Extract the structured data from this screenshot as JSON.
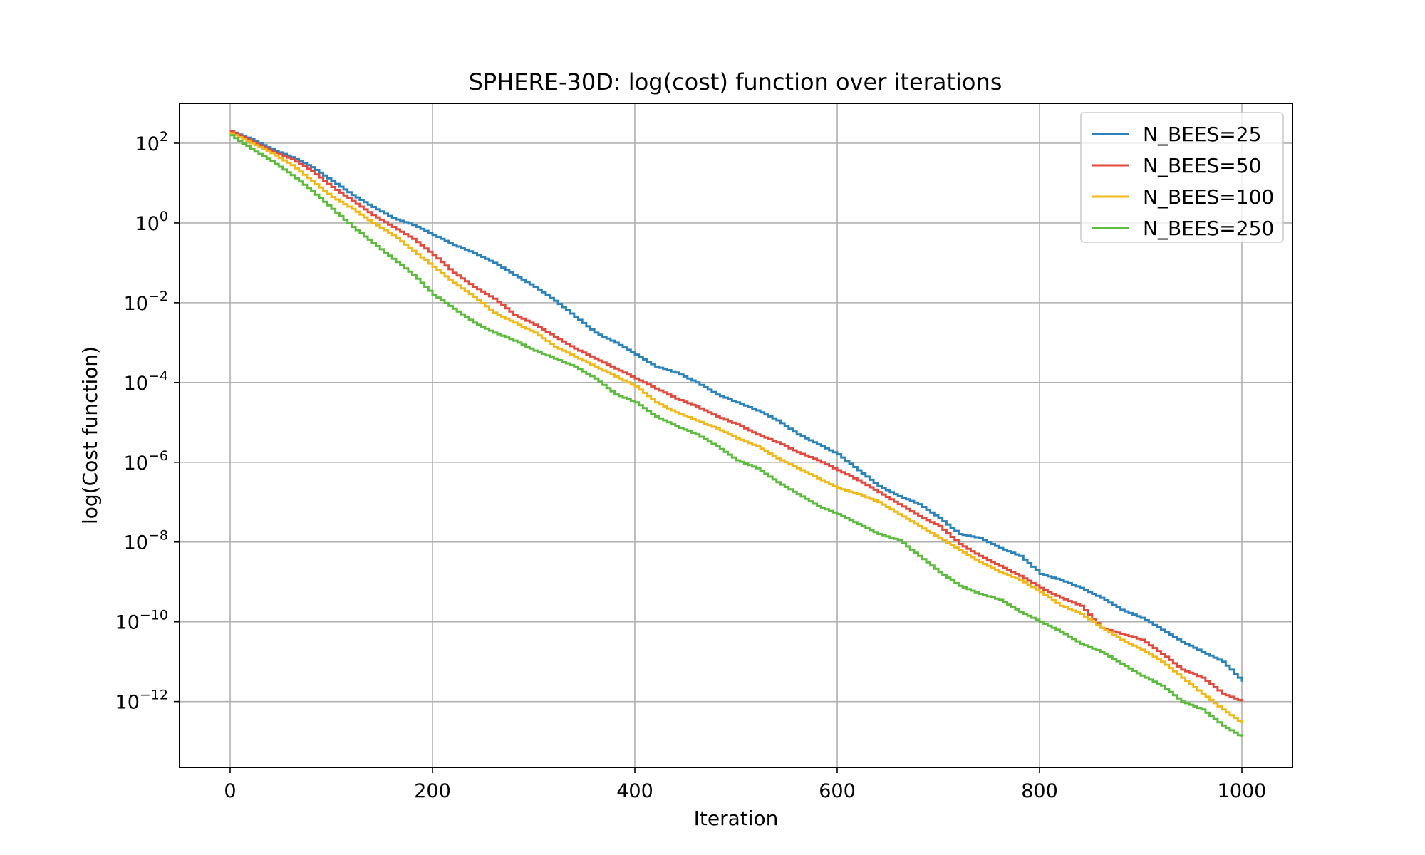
{
  "chart_data": {
    "type": "line",
    "title": "SPHERE-30D: log(cost) function over iterations",
    "xlabel": "Iteration",
    "ylabel": "log(Cost function)",
    "xlim": [
      -50,
      1050
    ],
    "ylim": [
      -13.65,
      3.0
    ],
    "yscale": "log",
    "grid": true,
    "legend_position": "top-right",
    "x_ticks": [
      "0",
      "200",
      "400",
      "600",
      "800",
      "1000"
    ],
    "y_ticks": [
      {
        "base": "10",
        "exp": "2"
      },
      {
        "base": "10",
        "exp": "0"
      },
      {
        "base": "10",
        "exp": "−2"
      },
      {
        "base": "10",
        "exp": "−4"
      },
      {
        "base": "10",
        "exp": "−6"
      },
      {
        "base": "10",
        "exp": "−8"
      },
      {
        "base": "10",
        "exp": "−10"
      },
      {
        "base": "10",
        "exp": "−12"
      }
    ],
    "series": [
      {
        "name": "N_BEES=25",
        "color": "#2b83ba",
        "points": [
          [
            0,
            2.3
          ],
          [
            20,
            2.1
          ],
          [
            40,
            1.85
          ],
          [
            60,
            1.65
          ],
          [
            80,
            1.4
          ],
          [
            100,
            1.05
          ],
          [
            120,
            0.7
          ],
          [
            140,
            0.4
          ],
          [
            160,
            0.12
          ],
          [
            180,
            -0.05
          ],
          [
            200,
            -0.3
          ],
          [
            220,
            -0.55
          ],
          [
            240,
            -0.75
          ],
          [
            260,
            -1.0
          ],
          [
            280,
            -1.3
          ],
          [
            300,
            -1.6
          ],
          [
            320,
            -1.95
          ],
          [
            340,
            -2.35
          ],
          [
            360,
            -2.75
          ],
          [
            380,
            -3.0
          ],
          [
            400,
            -3.3
          ],
          [
            420,
            -3.6
          ],
          [
            440,
            -3.75
          ],
          [
            460,
            -4.0
          ],
          [
            480,
            -4.3
          ],
          [
            500,
            -4.5
          ],
          [
            520,
            -4.7
          ],
          [
            540,
            -4.95
          ],
          [
            560,
            -5.3
          ],
          [
            580,
            -5.55
          ],
          [
            600,
            -5.8
          ],
          [
            620,
            -6.2
          ],
          [
            640,
            -6.6
          ],
          [
            660,
            -6.85
          ],
          [
            680,
            -7.05
          ],
          [
            700,
            -7.4
          ],
          [
            720,
            -7.8
          ],
          [
            740,
            -7.9
          ],
          [
            760,
            -8.15
          ],
          [
            780,
            -8.35
          ],
          [
            800,
            -8.8
          ],
          [
            820,
            -8.95
          ],
          [
            840,
            -9.15
          ],
          [
            860,
            -9.4
          ],
          [
            880,
            -9.7
          ],
          [
            900,
            -9.9
          ],
          [
            920,
            -10.2
          ],
          [
            940,
            -10.5
          ],
          [
            960,
            -10.75
          ],
          [
            980,
            -11.0
          ],
          [
            1000,
            -11.5
          ]
        ]
      },
      {
        "name": "N_BEES=50",
        "color": "#e04a3f",
        "points": [
          [
            0,
            2.3
          ],
          [
            20,
            2.05
          ],
          [
            40,
            1.8
          ],
          [
            60,
            1.6
          ],
          [
            80,
            1.3
          ],
          [
            100,
            0.9
          ],
          [
            120,
            0.55
          ],
          [
            140,
            0.2
          ],
          [
            160,
            -0.1
          ],
          [
            180,
            -0.4
          ],
          [
            200,
            -0.8
          ],
          [
            220,
            -1.25
          ],
          [
            240,
            -1.6
          ],
          [
            260,
            -1.9
          ],
          [
            280,
            -2.3
          ],
          [
            300,
            -2.55
          ],
          [
            320,
            -2.85
          ],
          [
            340,
            -3.15
          ],
          [
            360,
            -3.4
          ],
          [
            380,
            -3.65
          ],
          [
            400,
            -3.9
          ],
          [
            420,
            -4.15
          ],
          [
            440,
            -4.4
          ],
          [
            460,
            -4.6
          ],
          [
            480,
            -4.85
          ],
          [
            500,
            -5.05
          ],
          [
            520,
            -5.3
          ],
          [
            540,
            -5.5
          ],
          [
            560,
            -5.75
          ],
          [
            580,
            -5.95
          ],
          [
            600,
            -6.2
          ],
          [
            620,
            -6.45
          ],
          [
            640,
            -6.75
          ],
          [
            660,
            -7.05
          ],
          [
            680,
            -7.35
          ],
          [
            700,
            -7.6
          ],
          [
            720,
            -8.05
          ],
          [
            740,
            -8.35
          ],
          [
            760,
            -8.6
          ],
          [
            780,
            -8.85
          ],
          [
            800,
            -9.15
          ],
          [
            820,
            -9.4
          ],
          [
            840,
            -9.6
          ],
          [
            860,
            -10.15
          ],
          [
            880,
            -10.3
          ],
          [
            900,
            -10.45
          ],
          [
            920,
            -10.8
          ],
          [
            940,
            -11.2
          ],
          [
            960,
            -11.4
          ],
          [
            980,
            -11.8
          ],
          [
            1000,
            -12.0
          ]
        ]
      },
      {
        "name": "N_BEES=100",
        "color": "#f0b91b",
        "points": [
          [
            0,
            2.25
          ],
          [
            20,
            2.0
          ],
          [
            40,
            1.75
          ],
          [
            60,
            1.45
          ],
          [
            80,
            1.05
          ],
          [
            100,
            0.65
          ],
          [
            120,
            0.35
          ],
          [
            140,
            0.0
          ],
          [
            160,
            -0.3
          ],
          [
            180,
            -0.7
          ],
          [
            200,
            -1.1
          ],
          [
            220,
            -1.5
          ],
          [
            240,
            -1.85
          ],
          [
            260,
            -2.25
          ],
          [
            280,
            -2.5
          ],
          [
            300,
            -2.75
          ],
          [
            320,
            -3.1
          ],
          [
            340,
            -3.35
          ],
          [
            360,
            -3.6
          ],
          [
            380,
            -3.85
          ],
          [
            400,
            -4.1
          ],
          [
            420,
            -4.5
          ],
          [
            440,
            -4.75
          ],
          [
            460,
            -4.95
          ],
          [
            480,
            -5.15
          ],
          [
            500,
            -5.4
          ],
          [
            520,
            -5.6
          ],
          [
            540,
            -5.9
          ],
          [
            560,
            -6.15
          ],
          [
            580,
            -6.4
          ],
          [
            600,
            -6.65
          ],
          [
            620,
            -6.8
          ],
          [
            640,
            -7.0
          ],
          [
            660,
            -7.3
          ],
          [
            680,
            -7.6
          ],
          [
            700,
            -7.9
          ],
          [
            720,
            -8.2
          ],
          [
            740,
            -8.5
          ],
          [
            760,
            -8.75
          ],
          [
            780,
            -8.95
          ],
          [
            800,
            -9.25
          ],
          [
            820,
            -9.6
          ],
          [
            840,
            -9.8
          ],
          [
            860,
            -10.15
          ],
          [
            880,
            -10.45
          ],
          [
            900,
            -10.7
          ],
          [
            920,
            -11.0
          ],
          [
            940,
            -11.4
          ],
          [
            960,
            -11.8
          ],
          [
            980,
            -12.2
          ],
          [
            1000,
            -12.55
          ]
        ]
      },
      {
        "name": "N_BEES=250",
        "color": "#5dbb3f",
        "points": [
          [
            0,
            2.2
          ],
          [
            20,
            1.85
          ],
          [
            40,
            1.55
          ],
          [
            60,
            1.2
          ],
          [
            80,
            0.8
          ],
          [
            100,
            0.35
          ],
          [
            120,
            -0.1
          ],
          [
            140,
            -0.5
          ],
          [
            160,
            -0.9
          ],
          [
            180,
            -1.3
          ],
          [
            200,
            -1.8
          ],
          [
            220,
            -2.15
          ],
          [
            240,
            -2.5
          ],
          [
            260,
            -2.75
          ],
          [
            280,
            -2.95
          ],
          [
            300,
            -3.2
          ],
          [
            320,
            -3.4
          ],
          [
            340,
            -3.6
          ],
          [
            360,
            -3.9
          ],
          [
            380,
            -4.3
          ],
          [
            400,
            -4.5
          ],
          [
            420,
            -4.85
          ],
          [
            440,
            -5.1
          ],
          [
            460,
            -5.3
          ],
          [
            480,
            -5.6
          ],
          [
            500,
            -5.95
          ],
          [
            520,
            -6.15
          ],
          [
            540,
            -6.5
          ],
          [
            560,
            -6.8
          ],
          [
            580,
            -7.1
          ],
          [
            600,
            -7.3
          ],
          [
            620,
            -7.55
          ],
          [
            640,
            -7.8
          ],
          [
            660,
            -7.95
          ],
          [
            680,
            -8.35
          ],
          [
            700,
            -8.75
          ],
          [
            720,
            -9.1
          ],
          [
            740,
            -9.3
          ],
          [
            760,
            -9.45
          ],
          [
            780,
            -9.75
          ],
          [
            800,
            -10.0
          ],
          [
            820,
            -10.25
          ],
          [
            840,
            -10.55
          ],
          [
            860,
            -10.75
          ],
          [
            880,
            -11.05
          ],
          [
            900,
            -11.35
          ],
          [
            920,
            -11.6
          ],
          [
            940,
            -12.0
          ],
          [
            960,
            -12.2
          ],
          [
            980,
            -12.6
          ],
          [
            1000,
            -12.9
          ]
        ]
      }
    ]
  }
}
